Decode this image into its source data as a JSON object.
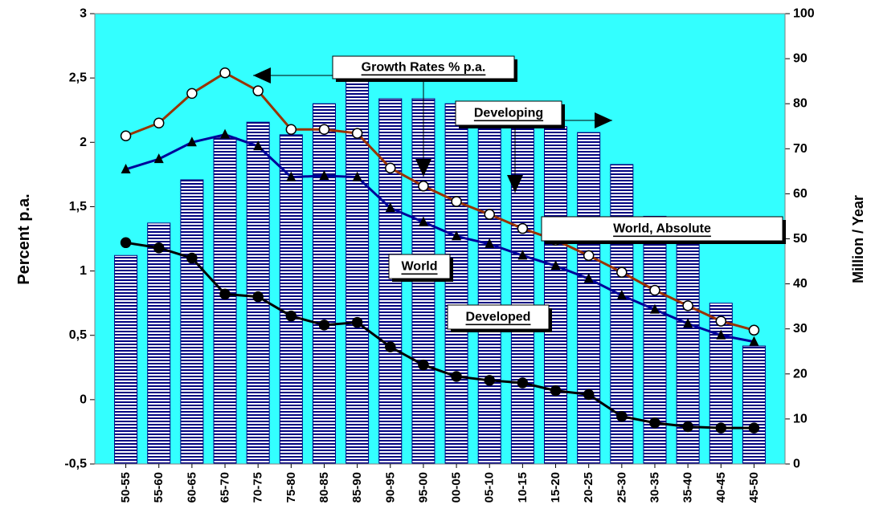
{
  "chart_data": {
    "type": "bar_line_combo",
    "categories": [
      "50-55",
      "55-60",
      "60-65",
      "65-70",
      "70-75",
      "75-80",
      "80-85",
      "85-90",
      "90-95",
      "95-00",
      "00-05",
      "05-10",
      "10-15",
      "15-20",
      "20-25",
      "25-30",
      "30-35",
      "35-40",
      "40-45",
      "45-50"
    ],
    "ylabel": "Percent p.a.",
    "y2label": "Million / Year",
    "ylim": [
      -0.5,
      3
    ],
    "yticks": [
      {
        "value": -0.5,
        "label": "-0,5"
      },
      0,
      {
        "value": 0.5,
        "label": "0,5"
      },
      1,
      {
        "value": 1.5,
        "label": "1,5"
      },
      2,
      {
        "value": 2.5,
        "label": "2,5"
      },
      3
    ],
    "y2lim": [
      0,
      100
    ],
    "y2ticks": [
      0,
      10,
      20,
      30,
      40,
      50,
      60,
      70,
      80,
      90,
      100
    ],
    "grid": true,
    "background": "#33ffff",
    "annotations": [
      "Growth Rates % p.a."
    ],
    "series": [
      {
        "name": "World, Absolute",
        "kind": "bar",
        "axis": "y2",
        "color": "#000080",
        "values": [
          46.3,
          53.5,
          63.1,
          72.5,
          75.9,
          73.1,
          80.0,
          85.2,
          81.1,
          81.1,
          80.0,
          78.1,
          76.3,
          74.9,
          73.6,
          66.5,
          55,
          52.0,
          35.7,
          26.2
        ]
      },
      {
        "name": "Developing",
        "kind": "line",
        "marker": "open-circle",
        "color": "#993300",
        "values": [
          2.05,
          2.15,
          2.38,
          2.54,
          2.4,
          2.1,
          2.1,
          2.07,
          1.8,
          1.66,
          1.54,
          1.44,
          1.33,
          1.24,
          1.12,
          0.99,
          0.85,
          0.73,
          0.61,
          0.54
        ]
      },
      {
        "name": "World",
        "kind": "line",
        "marker": "triangle",
        "color": "#000099",
        "values": [
          1.79,
          1.87,
          2.0,
          2.06,
          1.97,
          1.73,
          1.74,
          1.73,
          1.49,
          1.38,
          1.27,
          1.21,
          1.12,
          1.04,
          0.94,
          0.81,
          0.7,
          0.59,
          0.5,
          0.45
        ]
      },
      {
        "name": "Developed",
        "kind": "line",
        "marker": "circle",
        "color": "#000000",
        "values": [
          1.22,
          1.18,
          1.1,
          0.82,
          0.8,
          0.65,
          0.58,
          0.6,
          0.41,
          0.27,
          0.18,
          0.15,
          0.13,
          0.07,
          0.04,
          -0.13,
          -0.18,
          -0.21,
          -0.22,
          -0.22
        ]
      }
    ]
  }
}
